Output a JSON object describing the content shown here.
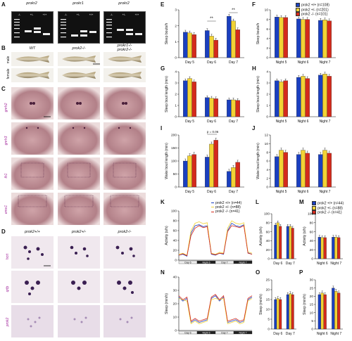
{
  "figure": {
    "panels": {
      "A": "A",
      "B": "B",
      "C": "C",
      "D": "D",
      "E": "E",
      "F": "F",
      "G": "G",
      "H": "H",
      "I": "I",
      "J": "J",
      "K": "K",
      "L": "L",
      "M": "M",
      "N": "N",
      "O": "O",
      "P": "P"
    },
    "gels": [
      {
        "title": "prokr2",
        "lanes": [
          "-/-",
          "+/-",
          "+/+"
        ]
      },
      {
        "title": "prokr1",
        "lanes": [
          "-/-",
          "+/-",
          "+/+"
        ]
      },
      {
        "title": "prokr2",
        "lanes": [
          "-/-",
          "+/-",
          "+/+"
        ]
      }
    ],
    "panel_b": {
      "cols": [
        "WT",
        "prok2-/-",
        "prokr1-/-\nprokr2-/-"
      ],
      "rows": [
        "male",
        "female"
      ]
    },
    "panel_c_rows": [
      "gnrh2",
      "gnrh3",
      "th1",
      "emx1"
    ],
    "panel_d": {
      "cols": [
        "prok2+/+",
        "prok2+/-",
        "prok2-/-"
      ],
      "rows": [
        "hcrt",
        "qrfp",
        "prok2"
      ]
    },
    "legend_f": [
      {
        "label": "prok2 +/+ (n=108)",
        "color": "#1a3fbf"
      },
      {
        "label": "prok2 +/- (n=201)",
        "color": "#f2d335"
      },
      {
        "label": "prok2 -/- (n=101)",
        "color": "#d42a1c"
      }
    ],
    "legend_k": [
      {
        "label": "prok2 +/+ (n=44)",
        "color": "#1a3fbf"
      },
      {
        "label": "prok2 +/- (n=88)",
        "color": "#f2d335"
      },
      {
        "label": "prok2 -/- (n=41)",
        "color": "#d42a1c"
      }
    ],
    "annot": {
      "e_sig1": "**",
      "e_sig2": "**",
      "i_p": "p = 0.06"
    },
    "bar_colors": [
      "#1a3fbf",
      "#f2d335",
      "#d42a1c"
    ],
    "timeline_labels": [
      "Day 6",
      "Night 6",
      "Day 7",
      "Night 7"
    ]
  },
  "chart_data": [
    {
      "id": "E",
      "type": "bar",
      "categories": [
        "Day 5",
        "Day 6",
        "Day 7"
      ],
      "ylabel": "Sleep bouts/h",
      "ylim": [
        0,
        3
      ],
      "yticks": [
        0,
        1,
        2,
        3
      ],
      "series": [
        {
          "values": [
            1.6,
            1.7,
            2.6
          ]
        },
        {
          "values": [
            1.55,
            1.35,
            2.3
          ]
        },
        {
          "values": [
            1.45,
            1.1,
            1.75
          ]
        }
      ]
    },
    {
      "id": "F",
      "type": "bar",
      "categories": [
        "Night 5",
        "Night 6",
        "Night 7"
      ],
      "ylabel": "Sleep bouts/h",
      "ylim": [
        0,
        10
      ],
      "yticks": [
        0,
        2,
        4,
        6,
        8,
        10
      ],
      "series": [
        {
          "values": [
            8.5,
            8.1,
            7.8
          ]
        },
        {
          "values": [
            8.4,
            8.0,
            7.9
          ]
        },
        {
          "values": [
            8.4,
            8.0,
            7.7
          ]
        }
      ]
    },
    {
      "id": "G",
      "type": "bar",
      "categories": [
        "Day 5",
        "Day 6",
        "Day 7"
      ],
      "ylabel": "Sleep bout length (min)",
      "ylim": [
        0,
        4
      ],
      "yticks": [
        0,
        1,
        2,
        3,
        4
      ],
      "series": [
        {
          "values": [
            3.2,
            1.7,
            1.5
          ]
        },
        {
          "values": [
            3.4,
            1.65,
            1.5
          ]
        },
        {
          "values": [
            3.1,
            1.6,
            1.45
          ]
        }
      ]
    },
    {
      "id": "H",
      "type": "bar",
      "categories": [
        "Night 5",
        "Night 6",
        "Night 7"
      ],
      "ylabel": "Sleep bout length (min)",
      "ylim": [
        0,
        4
      ],
      "yticks": [
        0,
        1,
        2,
        3,
        4
      ],
      "series": [
        {
          "values": [
            3.2,
            3.5,
            3.7
          ]
        },
        {
          "values": [
            3.1,
            3.6,
            3.8
          ]
        },
        {
          "values": [
            3.2,
            3.4,
            3.6
          ]
        }
      ]
    },
    {
      "id": "I",
      "type": "bar",
      "categories": [
        "Day 5",
        "Day 6",
        "Day 7"
      ],
      "ylabel": "Wake bout length (min)",
      "ylim": [
        0,
        200
      ],
      "yticks": [
        0,
        50,
        100,
        150,
        200
      ],
      "series": [
        {
          "values": [
            100,
            115,
            60
          ]
        },
        {
          "values": [
            120,
            165,
            75
          ]
        },
        {
          "values": [
            125,
            180,
            95
          ]
        }
      ]
    },
    {
      "id": "J",
      "type": "bar",
      "categories": [
        "Night 5",
        "Night 6",
        "Night 7"
      ],
      "ylabel": "Wake bout length (min)",
      "ylim": [
        0,
        12
      ],
      "yticks": [
        0,
        2,
        4,
        6,
        8,
        10,
        12
      ],
      "series": [
        {
          "values": [
            7,
            7.5,
            7.5
          ]
        },
        {
          "values": [
            8.5,
            8.5,
            8.5
          ]
        },
        {
          "values": [
            8,
            7.8,
            7.8
          ]
        }
      ]
    },
    {
      "id": "K",
      "type": "line",
      "ylabel": "Activity (s/h)",
      "ylim": [
        0,
        100
      ],
      "yticks": [
        0,
        20,
        40,
        60,
        80,
        100
      ],
      "series": [
        {
          "values": [
            10,
            12,
            8,
            55,
            70,
            72,
            68,
            70,
            12,
            10,
            14,
            12,
            60,
            75,
            70,
            68,
            72,
            15,
            12
          ]
        },
        {
          "values": [
            12,
            14,
            10,
            60,
            75,
            78,
            74,
            76,
            14,
            12,
            16,
            14,
            65,
            80,
            75,
            73,
            76,
            17,
            14
          ]
        },
        {
          "values": [
            10,
            13,
            9,
            50,
            65,
            70,
            66,
            68,
            13,
            11,
            14,
            13,
            58,
            70,
            68,
            66,
            70,
            14,
            12
          ]
        }
      ]
    },
    {
      "id": "L",
      "type": "bar",
      "categories": [
        "Day 6",
        "Day 7"
      ],
      "ylabel": "Activity (s/h)",
      "ylim": [
        0,
        100
      ],
      "yticks": [
        0,
        20,
        40,
        60,
        80,
        100
      ],
      "series": [
        {
          "values": [
            75,
            72
          ]
        },
        {
          "values": [
            80,
            72
          ]
        },
        {
          "values": [
            72,
            68
          ]
        }
      ]
    },
    {
      "id": "M",
      "type": "bar",
      "categories": [
        "Night 6",
        "Night 7"
      ],
      "ylabel": "Activity (s/h)",
      "ylim": [
        0,
        100
      ],
      "yticks": [
        0,
        20,
        40,
        60,
        80,
        100
      ],
      "series": [
        {
          "values": [
            48,
            48
          ]
        },
        {
          "values": [
            47,
            48
          ]
        },
        {
          "values": [
            47,
            47
          ]
        }
      ]
    },
    {
      "id": "N",
      "type": "line",
      "ylabel": "Sleep (min/h)",
      "ylim": [
        0,
        40
      ],
      "yticks": [
        0,
        10,
        20,
        30,
        40
      ],
      "series": [
        {
          "values": [
            25,
            22,
            24,
            6,
            8,
            6,
            7,
            8,
            24,
            26,
            22,
            25,
            6,
            7,
            8,
            6,
            7,
            23,
            25
          ]
        },
        {
          "values": [
            24,
            23,
            22,
            5,
            7,
            5,
            6,
            7,
            23,
            24,
            23,
            24,
            5,
            6,
            7,
            5,
            6,
            22,
            24
          ]
        },
        {
          "values": [
            26,
            23,
            25,
            7,
            9,
            7,
            8,
            9,
            25,
            27,
            23,
            26,
            7,
            8,
            9,
            7,
            8,
            24,
            26
          ]
        }
      ]
    },
    {
      "id": "O",
      "type": "bar",
      "categories": [
        "Day 6",
        "Day 7"
      ],
      "ylabel": "Sleep (min/h)",
      "ylim": [
        0,
        25
      ],
      "yticks": [
        0,
        5,
        10,
        15,
        20,
        25
      ],
      "series": [
        {
          "values": [
            15,
            17.5
          ]
        },
        {
          "values": [
            15.5,
            18
          ]
        },
        {
          "values": [
            15,
            17.5
          ]
        }
      ]
    },
    {
      "id": "P",
      "type": "bar",
      "categories": [
        "Night 6",
        "Night 7"
      ],
      "ylabel": "Sleep (min/h)",
      "ylim": [
        0,
        30
      ],
      "yticks": [
        0,
        5,
        10,
        15,
        20,
        25,
        30
      ],
      "series": [
        {
          "values": [
            21,
            25
          ]
        },
        {
          "values": [
            22,
            23
          ]
        },
        {
          "values": [
            21,
            22
          ]
        }
      ]
    }
  ]
}
